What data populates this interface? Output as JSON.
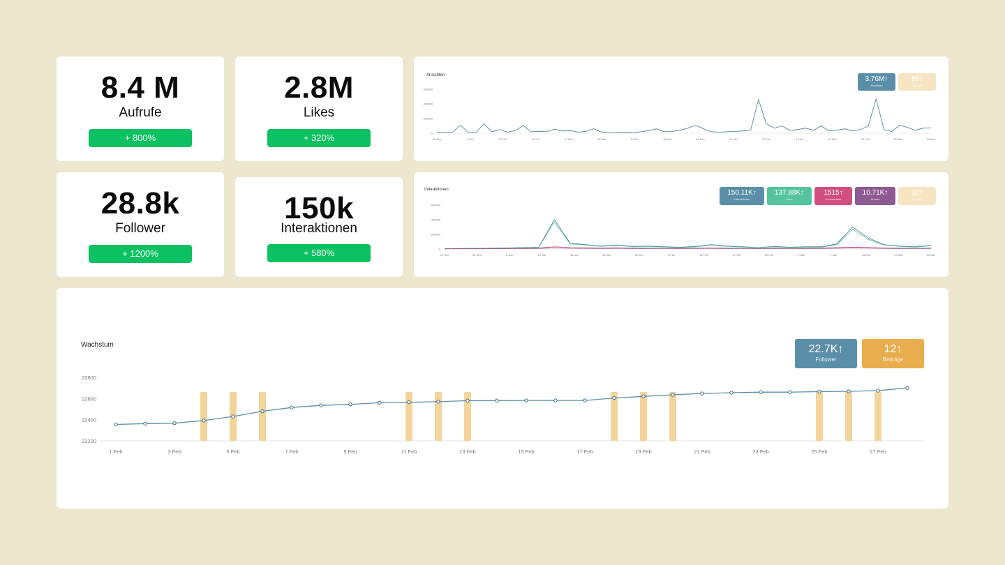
{
  "stats": [
    {
      "value": "8.4 M",
      "label": "Aufrufe",
      "change": "+ 800%"
    },
    {
      "value": "2.8M",
      "label": "Likes",
      "change": "+ 320%"
    },
    {
      "value": "28.8k",
      "label": "Follower",
      "change": "+ 1200%"
    },
    {
      "value": "150k",
      "label": "Interaktionen",
      "change": "+ 580%"
    }
  ],
  "views_chart": {
    "title": "Ansichten",
    "badges": [
      {
        "value": "3.76M",
        "arrow": "↑",
        "label": "Ansichten",
        "color": "#5b8fa8"
      },
      {
        "value": "85",
        "arrow": "↑",
        "label": "Beiträge",
        "color": "#f6e4c3"
      }
    ]
  },
  "interactions_chart": {
    "title": "Interaktionen",
    "badges": [
      {
        "value": "150.11K",
        "arrow": "↑",
        "label": "Interaktionen",
        "color": "#5b8fa8"
      },
      {
        "value": "137.88K",
        "arrow": "↑",
        "label": "Likes",
        "color": "#55c49e"
      },
      {
        "value": "1515",
        "arrow": "↑",
        "label": "Kommentare",
        "color": "#d14f7e"
      },
      {
        "value": "10.71K",
        "arrow": "↑",
        "label": "Shares",
        "color": "#8e5a92"
      },
      {
        "value": "32",
        "arrow": "↑",
        "label": "Beiträge",
        "color": "#f6e4c3"
      }
    ]
  },
  "growth_chart": {
    "title": "Wachstum",
    "badges": [
      {
        "value": "22.7K",
        "arrow": "↑",
        "label": "Follower",
        "color": "#5b8fa8"
      },
      {
        "value": "12",
        "arrow": "↑",
        "label": "Beiträge",
        "color": "#e8ad4c"
      }
    ]
  },
  "chart_data": [
    {
      "type": "line",
      "title": "Ansichten",
      "x_ticks": [
        "25 Sep",
        "7 Oct",
        "19 Oct",
        "31 Oct",
        "12 Nov",
        "24 Nov",
        "6 Dec",
        "18 Dec",
        "30 Dec",
        "11 Jan",
        "23 Jan",
        "4 Feb",
        "16 Feb",
        "28 Feb",
        "12 Mar",
        "24 Mar"
      ],
      "y_ticks": [
        0,
        200000,
        400000,
        600000
      ],
      "ylim": [
        0,
        600000
      ],
      "series": [
        {
          "color": "#3b7a8c",
          "values": [
            12000,
            10000,
            15000,
            110000,
            10000,
            8000,
            130000,
            20000,
            50000,
            15000,
            35000,
            105000,
            20000,
            25000,
            20000,
            55000,
            30000,
            35000,
            15000,
            25000,
            60000,
            15000,
            10000,
            8000,
            12000,
            10000,
            20000,
            35000,
            60000,
            20000,
            25000,
            40000,
            70000,
            110000,
            60000,
            20000,
            15000,
            20000,
            25000,
            30000,
            40000,
            460000,
            130000,
            70000,
            100000,
            40000,
            50000,
            70000,
            40000,
            100000,
            30000,
            40000,
            60000,
            30000,
            50000,
            100000,
            470000,
            50000,
            25000,
            110000,
            80000,
            40000,
            70000,
            75000
          ]
        }
      ]
    },
    {
      "type": "line",
      "title": "Interaktionen",
      "x_ticks": [
        "29 Dec",
        "31 Dec",
        "6 Jan",
        "12 Jan",
        "18 Jan",
        "24 Jan",
        "30 Jan",
        "5 Feb",
        "11 Feb",
        "17 Feb",
        "23 Feb",
        "1 Mar",
        "7 Mar",
        "13 Mar",
        "19 Mar",
        "25 Mar"
      ],
      "y_ticks": [
        0,
        200000,
        400000,
        600000
      ],
      "ylim": [
        0,
        600000
      ],
      "series": [
        {
          "color": "#3b7a8c",
          "values": [
            5000,
            8000,
            10000,
            12000,
            15000,
            20000,
            25000,
            400000,
            80000,
            60000,
            40000,
            55000,
            35000,
            40000,
            30000,
            25000,
            35000,
            60000,
            40000,
            30000,
            20000,
            35000,
            25000,
            30000,
            30000,
            70000,
            300000,
            150000,
            60000,
            40000,
            30000,
            50000
          ]
        },
        {
          "color": "#55c49e",
          "values": [
            4000,
            7000,
            9000,
            10000,
            13000,
            18000,
            22000,
            370000,
            70000,
            55000,
            35000,
            50000,
            30000,
            35000,
            25000,
            20000,
            30000,
            55000,
            35000,
            25000,
            18000,
            30000,
            20000,
            25000,
            25000,
            60000,
            270000,
            130000,
            55000,
            35000,
            25000,
            45000
          ]
        },
        {
          "color": "#d14f7e",
          "values": [
            3000,
            5000,
            6000,
            8000,
            9000,
            12000,
            15000,
            30000,
            20000,
            18000,
            15000,
            17000,
            14000,
            12000,
            10000,
            12000,
            14000,
            15000,
            12000,
            10000,
            9000,
            12000,
            10000,
            12000,
            15000,
            20000,
            25000,
            20000,
            15000,
            12000,
            10000,
            14000
          ]
        },
        {
          "color": "#8e5a92",
          "values": [
            2000,
            3000,
            4000,
            5000,
            5000,
            6000,
            8000,
            15000,
            10000,
            9000,
            8000,
            9000,
            7000,
            6000,
            6000,
            7000,
            8000,
            9000,
            7000,
            6000,
            5000,
            7000,
            6000,
            7000,
            8000,
            10000,
            14000,
            12000,
            9000,
            7000,
            6000,
            8000
          ]
        }
      ]
    },
    {
      "type": "line",
      "title": "Wachstum",
      "x_ticks": [
        "1 Feb",
        "3 Feb",
        "5 Feb",
        "7 Feb",
        "9 Feb",
        "11 Feb",
        "13 Feb",
        "15 Feb",
        "17 Feb",
        "19 Feb",
        "21 Feb",
        "23 Feb",
        "25 Feb",
        "27 Feb"
      ],
      "y_ticks": [
        22200,
        22400,
        22600,
        22800
      ],
      "ylim": [
        22200,
        22800
      ],
      "x": [
        "1 Feb",
        "2 Feb",
        "3 Feb",
        "4 Feb",
        "5 Feb",
        "6 Feb",
        "7 Feb",
        "8 Feb",
        "9 Feb",
        "10 Feb",
        "11 Feb",
        "12 Feb",
        "13 Feb",
        "14 Feb",
        "15 Feb",
        "16 Feb",
        "17 Feb",
        "18 Feb",
        "19 Feb",
        "20 Feb",
        "21 Feb",
        "22 Feb",
        "23 Feb",
        "24 Feb",
        "25 Feb",
        "26 Feb",
        "27 Feb",
        "28 Feb"
      ],
      "series": [
        {
          "name": "Follower",
          "color": "#5b8fa8",
          "values": [
            22355,
            22363,
            22367,
            22392,
            22430,
            22480,
            22515,
            22535,
            22545,
            22560,
            22565,
            22570,
            22580,
            22580,
            22582,
            22582,
            22582,
            22605,
            22620,
            22635,
            22648,
            22655,
            22660,
            22660,
            22665,
            22668,
            22675,
            22700
          ]
        },
        {
          "name": "Beiträge",
          "color": "#f2d59c",
          "bar_days": [
            "4 Feb",
            "5 Feb",
            "6 Feb",
            "11 Feb",
            "12 Feb",
            "13 Feb",
            "18 Feb",
            "19 Feb",
            "20 Feb",
            "25 Feb",
            "26 Feb",
            "27 Feb"
          ]
        }
      ]
    }
  ]
}
